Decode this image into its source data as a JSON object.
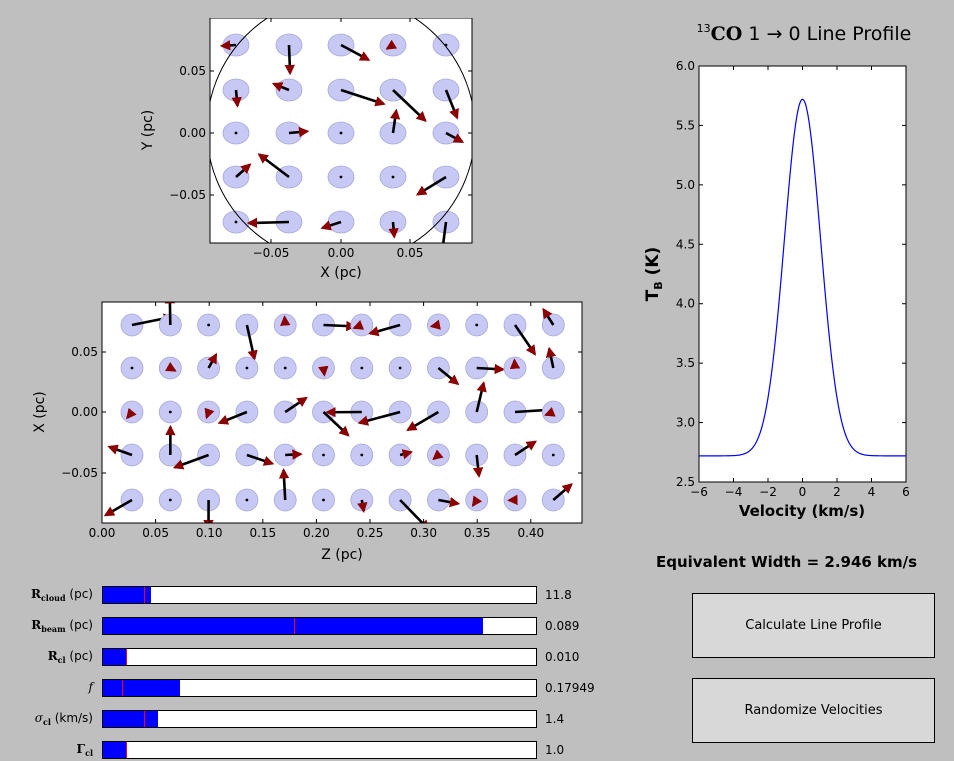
{
  "top_panel": {
    "xlabel": "X (pc)",
    "ylabel": "Y (pc)",
    "xticks": [
      "−0.05",
      "0.00",
      "0.05"
    ],
    "yticks": [
      "0.05",
      "0.00",
      "−0.05"
    ]
  },
  "middle_panel": {
    "xlabel": "Z (pc)",
    "ylabel": "X (pc)",
    "xticks": [
      "0.00",
      "0.05",
      "0.10",
      "0.15",
      "0.20",
      "0.25",
      "0.30",
      "0.35",
      "0.40"
    ],
    "yticks": [
      "0.05",
      "0.00",
      "−0.05"
    ]
  },
  "line_profile": {
    "title_sup": "13",
    "title_mol": "CO",
    "title_rest": " 1 → 0 Line Profile",
    "xlabel": "Velocity (km/s)",
    "ylabel_main": "T",
    "ylabel_sub": "B",
    "ylabel_unit": " (K)",
    "xticks": [
      "−6",
      "−4",
      "−2",
      "0",
      "2",
      "4",
      "6"
    ],
    "yticks": [
      "6.0",
      "5.5",
      "5.0",
      "4.5",
      "4.0",
      "3.5",
      "3.0",
      "2.5"
    ],
    "line_color": "#0000ff"
  },
  "chart_data": {
    "type": "line",
    "title": "13CO 1→0 Line Profile",
    "xlabel": "Velocity (km/s)",
    "ylabel": "T_B (K)",
    "xlim": [
      -6,
      6
    ],
    "ylim": [
      2.5,
      6.0
    ],
    "x": [
      -6,
      -5,
      -4,
      -3,
      -2.5,
      -2,
      -1.5,
      -1,
      -0.5,
      0,
      0.5,
      1,
      1.5,
      2,
      2.5,
      3,
      4,
      5,
      6
    ],
    "y": [
      2.72,
      2.72,
      2.73,
      2.8,
      2.9,
      3.12,
      3.55,
      4.25,
      5.1,
      5.72,
      5.1,
      4.25,
      3.55,
      3.12,
      2.9,
      2.8,
      2.73,
      2.72,
      2.72
    ]
  },
  "equivalent_width": "Equivalent Width = 2.946 km/s",
  "sliders": [
    {
      "sym": "R",
      "sub": "cloud",
      "unit": " (pc)",
      "value": "11.8",
      "fill_frac": 0.11,
      "mark_frac": 0.095
    },
    {
      "sym": "R",
      "sub": "beam",
      "unit": " (pc)",
      "value": "0.089",
      "fill_frac": 0.878,
      "mark_frac": 0.442
    },
    {
      "sym": "R",
      "sub": "cl",
      "unit": " (pc)",
      "value": "0.010",
      "fill_frac": 0.052,
      "mark_frac": 0.052
    },
    {
      "sym": "f",
      "sub": "",
      "unit": "",
      "value": "0.17949",
      "fill_frac": 0.178,
      "mark_frac": 0.045
    },
    {
      "sym": "σ",
      "sub": "cl",
      "unit": " (km/s)",
      "value": "1.4",
      "fill_frac": 0.128,
      "mark_frac": 0.095
    },
    {
      "sym": "Γ",
      "sub": "cl",
      "unit": "",
      "value": "1.0",
      "fill_frac": 0.052,
      "mark_frac": 0.052
    }
  ],
  "buttons": {
    "calculate": "Calculate Line Profile",
    "randomize": "Randomize Velocities"
  },
  "colors": {
    "background": "#bfbfbf",
    "clump_fill": "#c8c8f5",
    "slider_fill": "#0000ff",
    "slider_marker": "#ff0000",
    "arrow": "#000000",
    "arrow_head": "#8b0000"
  }
}
